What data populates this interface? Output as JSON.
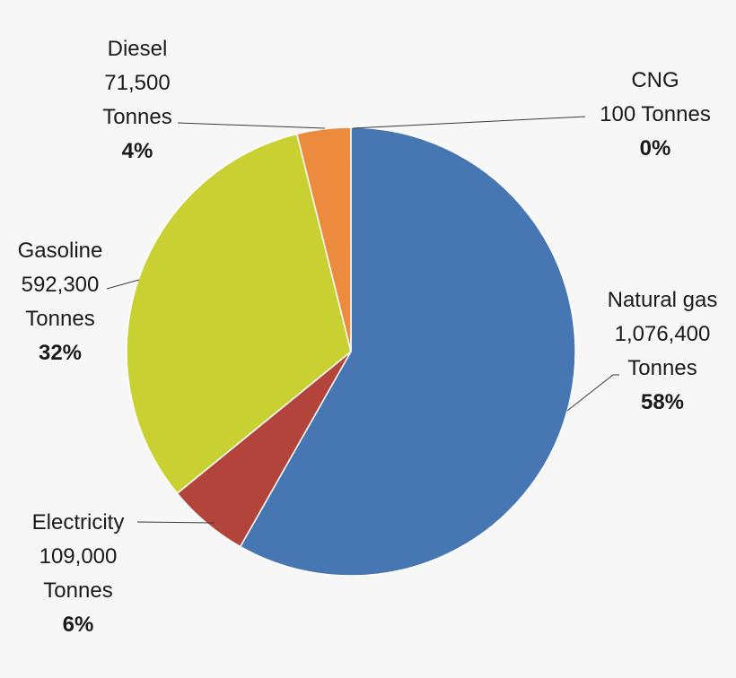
{
  "chart_data": {
    "type": "pie",
    "unit": "Tonnes",
    "slices": [
      {
        "label": "Natural gas",
        "value": 1076400,
        "value_text": "1,076,400",
        "unit_text": "Tonnes",
        "percent": "58%",
        "color": "#4677b2"
      },
      {
        "label": "Electricity",
        "value": 109000,
        "value_text": "109,000",
        "unit_text": "Tonnes",
        "percent": "6%",
        "color": "#b2443b"
      },
      {
        "label": "Gasoline",
        "value": 592300,
        "value_text": "592,300",
        "unit_text": "Tonnes",
        "percent": "32%",
        "color": "#c9d132"
      },
      {
        "label": "Diesel",
        "value": 71500,
        "value_text": "71,500",
        "unit_text": "Tonnes",
        "percent": "4%",
        "color": "#ec8a3e"
      },
      {
        "label": "CNG",
        "value": 100,
        "value_text": "100",
        "unit_text": "Tonnes",
        "percent": "0%",
        "color": "#9bb6dc"
      }
    ],
    "legend": "none",
    "start_angle": "12 o'clock",
    "direction": "clockwise"
  }
}
